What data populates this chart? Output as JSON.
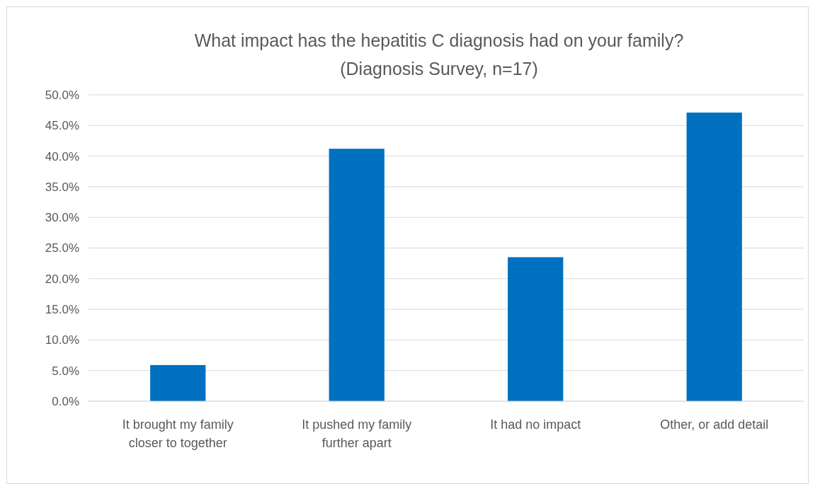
{
  "chart_data": {
    "type": "bar",
    "title": "What impact has the hepatitis C diagnosis had on your family?",
    "subtitle": "(Diagnosis Survey, n=17)",
    "categories": [
      "It brought my family closer to together",
      "It pushed my family further apart",
      "It had no impact",
      "Other, or add detail"
    ],
    "values": [
      5.9,
      41.2,
      23.5,
      47.1
    ],
    "color": "#0070c0",
    "ylim": [
      0,
      50
    ],
    "yticks": [
      {
        "value": 0,
        "label": "0.0%"
      },
      {
        "value": 5,
        "label": "5.0%"
      },
      {
        "value": 10,
        "label": "10.0%"
      },
      {
        "value": 15,
        "label": "15.0%"
      },
      {
        "value": 20,
        "label": "20.0%"
      },
      {
        "value": 25,
        "label": "25.0%"
      },
      {
        "value": 30,
        "label": "30.0%"
      },
      {
        "value": 35,
        "label": "35.0%"
      },
      {
        "value": 40,
        "label": "40.0%"
      },
      {
        "value": 45,
        "label": "45.0%"
      },
      {
        "value": 50,
        "label": "50.0%"
      }
    ],
    "grid": "y"
  }
}
